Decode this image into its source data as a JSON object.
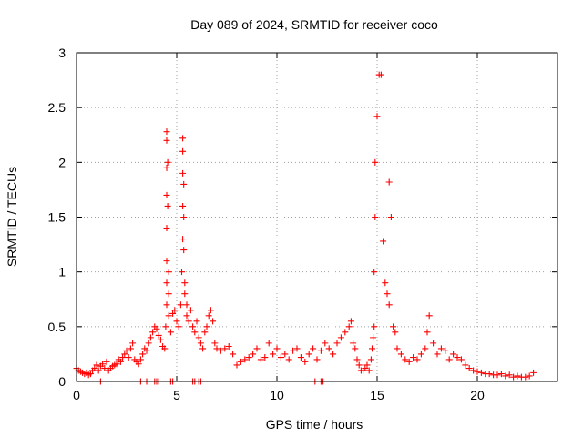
{
  "chart_data": {
    "type": "scatter",
    "title": "Day 089 of 2024, SRMTID for receiver coco",
    "xlabel": "GPS time / hours",
    "ylabel": "SRMTID / TECUs",
    "xlim": [
      0,
      24
    ],
    "ylim": [
      0,
      3
    ],
    "xticks": [
      0,
      5,
      10,
      15,
      20
    ],
    "xtick_labels": [
      "0",
      "5",
      "10",
      "15",
      "20"
    ],
    "yticks": [
      0,
      0.5,
      1,
      1.5,
      2,
      2.5,
      3
    ],
    "ytick_labels": [
      "0",
      "0.5",
      "1",
      "1.5",
      "2",
      "2.5",
      "3"
    ],
    "grid": true,
    "marker": "+",
    "series": [
      {
        "name": "SRMTID",
        "color": "#ff0000",
        "x": [
          0.0,
          0.1,
          0.2,
          0.3,
          0.4,
          0.5,
          0.6,
          0.7,
          0.8,
          0.9,
          1.0,
          1.1,
          1.2,
          1.3,
          1.4,
          1.5,
          1.6,
          1.7,
          1.8,
          1.9,
          2.0,
          2.1,
          2.2,
          2.3,
          2.4,
          2.5,
          2.6,
          2.7,
          2.8,
          2.9,
          3.0,
          3.1,
          3.2,
          3.3,
          3.4,
          3.5,
          3.6,
          3.7,
          3.8,
          3.9,
          4.0,
          4.1,
          4.2,
          4.3,
          4.4,
          4.45,
          4.5,
          4.5,
          4.5,
          4.5,
          4.5,
          4.5,
          4.5,
          4.5,
          4.55,
          4.55,
          4.6,
          4.6,
          4.6,
          4.7,
          4.8,
          4.9,
          5.0,
          5.1,
          5.2,
          5.25,
          5.3,
          5.3,
          5.3,
          5.3,
          5.3,
          5.35,
          5.35,
          5.35,
          5.4,
          5.4,
          5.5,
          5.5,
          5.6,
          5.7,
          5.8,
          5.9,
          6.0,
          6.1,
          6.2,
          6.3,
          6.4,
          6.5,
          6.6,
          6.7,
          6.8,
          6.9,
          7.0,
          7.2,
          7.4,
          7.6,
          7.8,
          8.0,
          8.2,
          8.4,
          8.6,
          8.8,
          9.0,
          9.2,
          9.4,
          9.6,
          9.8,
          10.0,
          10.2,
          10.4,
          10.6,
          10.8,
          11.0,
          11.2,
          11.4,
          11.6,
          11.8,
          12.0,
          12.2,
          12.4,
          12.6,
          12.8,
          13.0,
          13.2,
          13.4,
          13.6,
          13.7,
          13.8,
          13.9,
          14.0,
          14.1,
          14.2,
          14.3,
          14.4,
          14.5,
          14.6,
          14.7,
          14.75,
          14.8,
          14.85,
          14.85,
          14.9,
          14.9,
          15.0,
          15.1,
          15.2,
          15.3,
          15.4,
          15.5,
          15.6,
          15.6,
          15.7,
          15.8,
          15.9,
          16.0,
          16.2,
          16.4,
          16.6,
          16.8,
          17.0,
          17.2,
          17.4,
          17.5,
          17.6,
          17.8,
          18.0,
          18.2,
          18.4,
          18.6,
          18.8,
          19.0,
          19.2,
          19.4,
          19.6,
          19.8,
          20.0,
          20.2,
          20.4,
          20.6,
          20.8,
          21.0,
          21.2,
          21.4,
          21.6,
          21.8,
          22.0,
          22.2,
          22.4,
          22.6,
          22.8,
          1.2,
          3.2,
          3.5,
          3.9,
          4.0,
          4.1,
          4.7,
          4.8,
          5.8,
          5.9,
          6.1,
          6.2,
          11.9,
          12.2,
          12.3
        ],
        "y": [
          0.12,
          0.1,
          0.09,
          0.08,
          0.07,
          0.08,
          0.06,
          0.07,
          0.1,
          0.12,
          0.15,
          0.1,
          0.14,
          0.16,
          0.12,
          0.18,
          0.1,
          0.12,
          0.14,
          0.15,
          0.16,
          0.2,
          0.18,
          0.22,
          0.25,
          0.28,
          0.22,
          0.3,
          0.35,
          0.2,
          0.18,
          0.16,
          0.2,
          0.25,
          0.3,
          0.28,
          0.35,
          0.4,
          0.45,
          0.5,
          0.48,
          0.42,
          0.38,
          0.32,
          0.3,
          0.5,
          0.7,
          0.9,
          1.1,
          1.4,
          1.7,
          1.95,
          2.2,
          2.28,
          2.0,
          1.6,
          1.0,
          0.8,
          0.6,
          0.45,
          0.62,
          0.65,
          0.55,
          0.5,
          0.7,
          1.0,
          1.3,
          1.6,
          1.9,
          2.1,
          2.22,
          1.8,
          1.5,
          1.2,
          0.9,
          0.8,
          0.7,
          0.6,
          0.55,
          0.65,
          0.5,
          0.45,
          0.55,
          0.4,
          0.35,
          0.3,
          0.45,
          0.5,
          0.6,
          0.65,
          0.55,
          0.35,
          0.3,
          0.28,
          0.3,
          0.32,
          0.25,
          0.15,
          0.18,
          0.2,
          0.22,
          0.25,
          0.3,
          0.2,
          0.22,
          0.35,
          0.25,
          0.3,
          0.22,
          0.25,
          0.2,
          0.28,
          0.3,
          0.22,
          0.18,
          0.25,
          0.3,
          0.2,
          0.28,
          0.35,
          0.3,
          0.25,
          0.35,
          0.4,
          0.45,
          0.5,
          0.55,
          0.35,
          0.3,
          0.2,
          0.15,
          0.1,
          0.1,
          0.12,
          0.15,
          0.1,
          0.2,
          0.3,
          0.4,
          0.5,
          1.0,
          1.5,
          2.0,
          2.42,
          2.8,
          2.8,
          1.28,
          0.9,
          0.8,
          0.7,
          1.82,
          1.5,
          0.5,
          0.45,
          0.3,
          0.25,
          0.2,
          0.18,
          0.22,
          0.2,
          0.25,
          0.3,
          0.45,
          0.6,
          0.35,
          0.25,
          0.3,
          0.28,
          0.2,
          0.25,
          0.22,
          0.2,
          0.15,
          0.12,
          0.1,
          0.09,
          0.08,
          0.07,
          0.07,
          0.06,
          0.06,
          0.07,
          0.05,
          0.06,
          0.04,
          0.05,
          0.04,
          0.04,
          0.05,
          0.08,
          0.0,
          0.0,
          0.0,
          0.0,
          0.0,
          0.0,
          0.0,
          0.0,
          0.0,
          0.0,
          0.0,
          0.0,
          0.0,
          0.0,
          0.0
        ]
      }
    ]
  }
}
